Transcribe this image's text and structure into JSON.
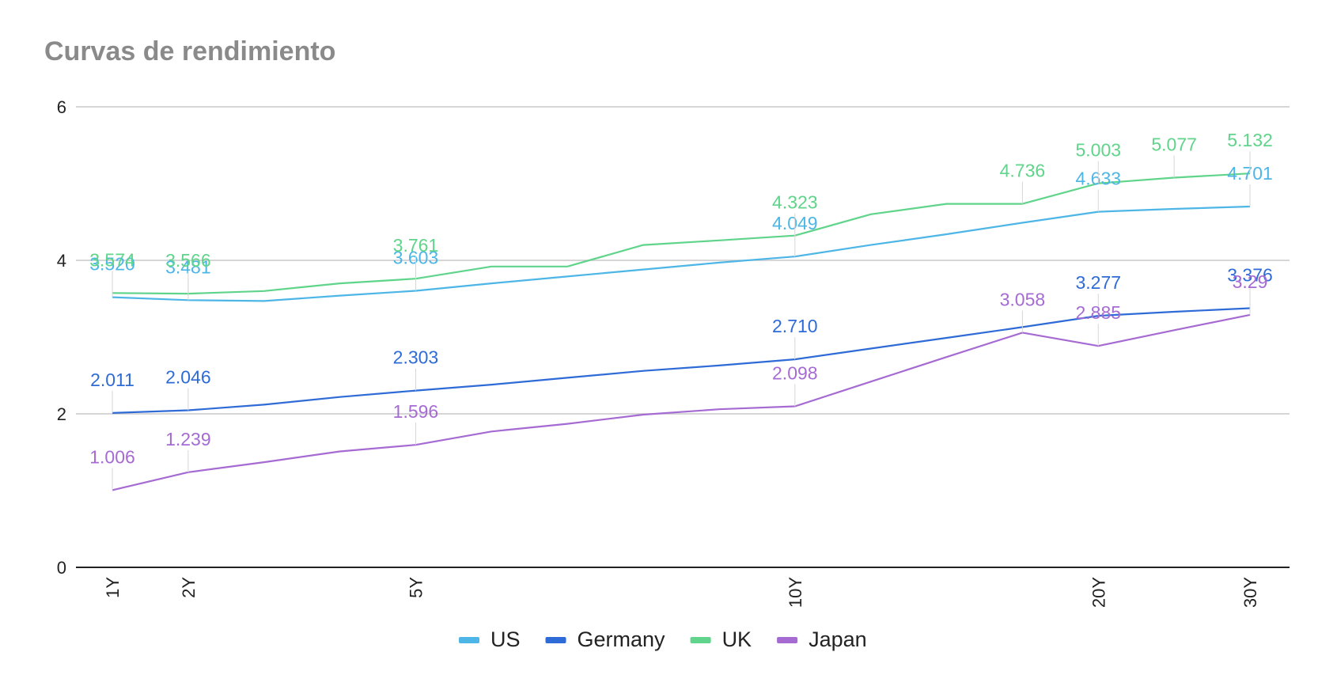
{
  "chart_data": {
    "type": "line",
    "title": "Curvas de rendimiento",
    "xlabel": "",
    "ylabel": "",
    "ylim": [
      0,
      6
    ],
    "yticks": [
      "0",
      "2",
      "4",
      "6"
    ],
    "x": [
      1,
      2,
      3,
      4,
      5,
      6,
      7,
      8,
      9,
      10,
      11,
      12,
      13,
      14,
      15,
      16
    ],
    "x_tick_labels": [
      "1Y",
      "2Y",
      "",
      "",
      "5Y",
      "",
      "",
      "",
      "",
      "10Y",
      "",
      "",
      "",
      "20Y",
      "",
      "30Y"
    ],
    "grid": true,
    "legend_position": "bottom",
    "series": [
      {
        "name": "US",
        "color": "#4db6e6",
        "values": [
          3.52,
          3.481,
          3.47,
          3.54,
          3.603,
          3.7,
          3.79,
          3.88,
          3.97,
          4.049,
          4.2,
          4.34,
          4.49,
          4.633,
          4.67,
          4.701
        ],
        "labels": [
          "3.520",
          "3.481",
          "",
          "",
          "3.603",
          "",
          "",
          "",
          "",
          "4.049",
          "",
          "",
          "",
          "4.633",
          "",
          "4.701"
        ]
      },
      {
        "name": "Germany",
        "color": "#2f6bd6",
        "values": [
          2.011,
          2.046,
          2.12,
          2.22,
          2.303,
          2.38,
          2.47,
          2.56,
          2.63,
          2.71,
          2.85,
          2.99,
          3.13,
          3.277,
          3.33,
          3.376
        ],
        "labels": [
          "2.011",
          "2.046",
          "",
          "",
          "2.303",
          "",
          "",
          "",
          "",
          "2.710",
          "",
          "",
          "",
          "3.277",
          "",
          "3.376"
        ]
      },
      {
        "name": "UK",
        "color": "#5fd48a",
        "values": [
          3.574,
          3.566,
          3.6,
          3.7,
          3.761,
          3.92,
          3.92,
          4.2,
          4.26,
          4.323,
          4.6,
          4.736,
          4.736,
          5.003,
          5.077,
          5.132
        ],
        "labels": [
          "3.574",
          "3.566",
          "",
          "",
          "3.761",
          "",
          "",
          "",
          "",
          "4.323",
          "",
          "",
          "4.736",
          "5.003",
          "5.077",
          "5.132"
        ]
      },
      {
        "name": "Japan",
        "color": "#a66bd3",
        "values": [
          1.006,
          1.239,
          1.37,
          1.51,
          1.596,
          1.77,
          1.87,
          1.99,
          2.06,
          2.098,
          2.42,
          2.74,
          3.058,
          2.885,
          3.09,
          3.29
        ],
        "labels": [
          "1.006",
          "1.239",
          "",
          "",
          "1.596",
          "",
          "",
          "",
          "",
          "2.098",
          "",
          "",
          "3.058",
          "2.885",
          "",
          "3.29"
        ]
      }
    ]
  }
}
